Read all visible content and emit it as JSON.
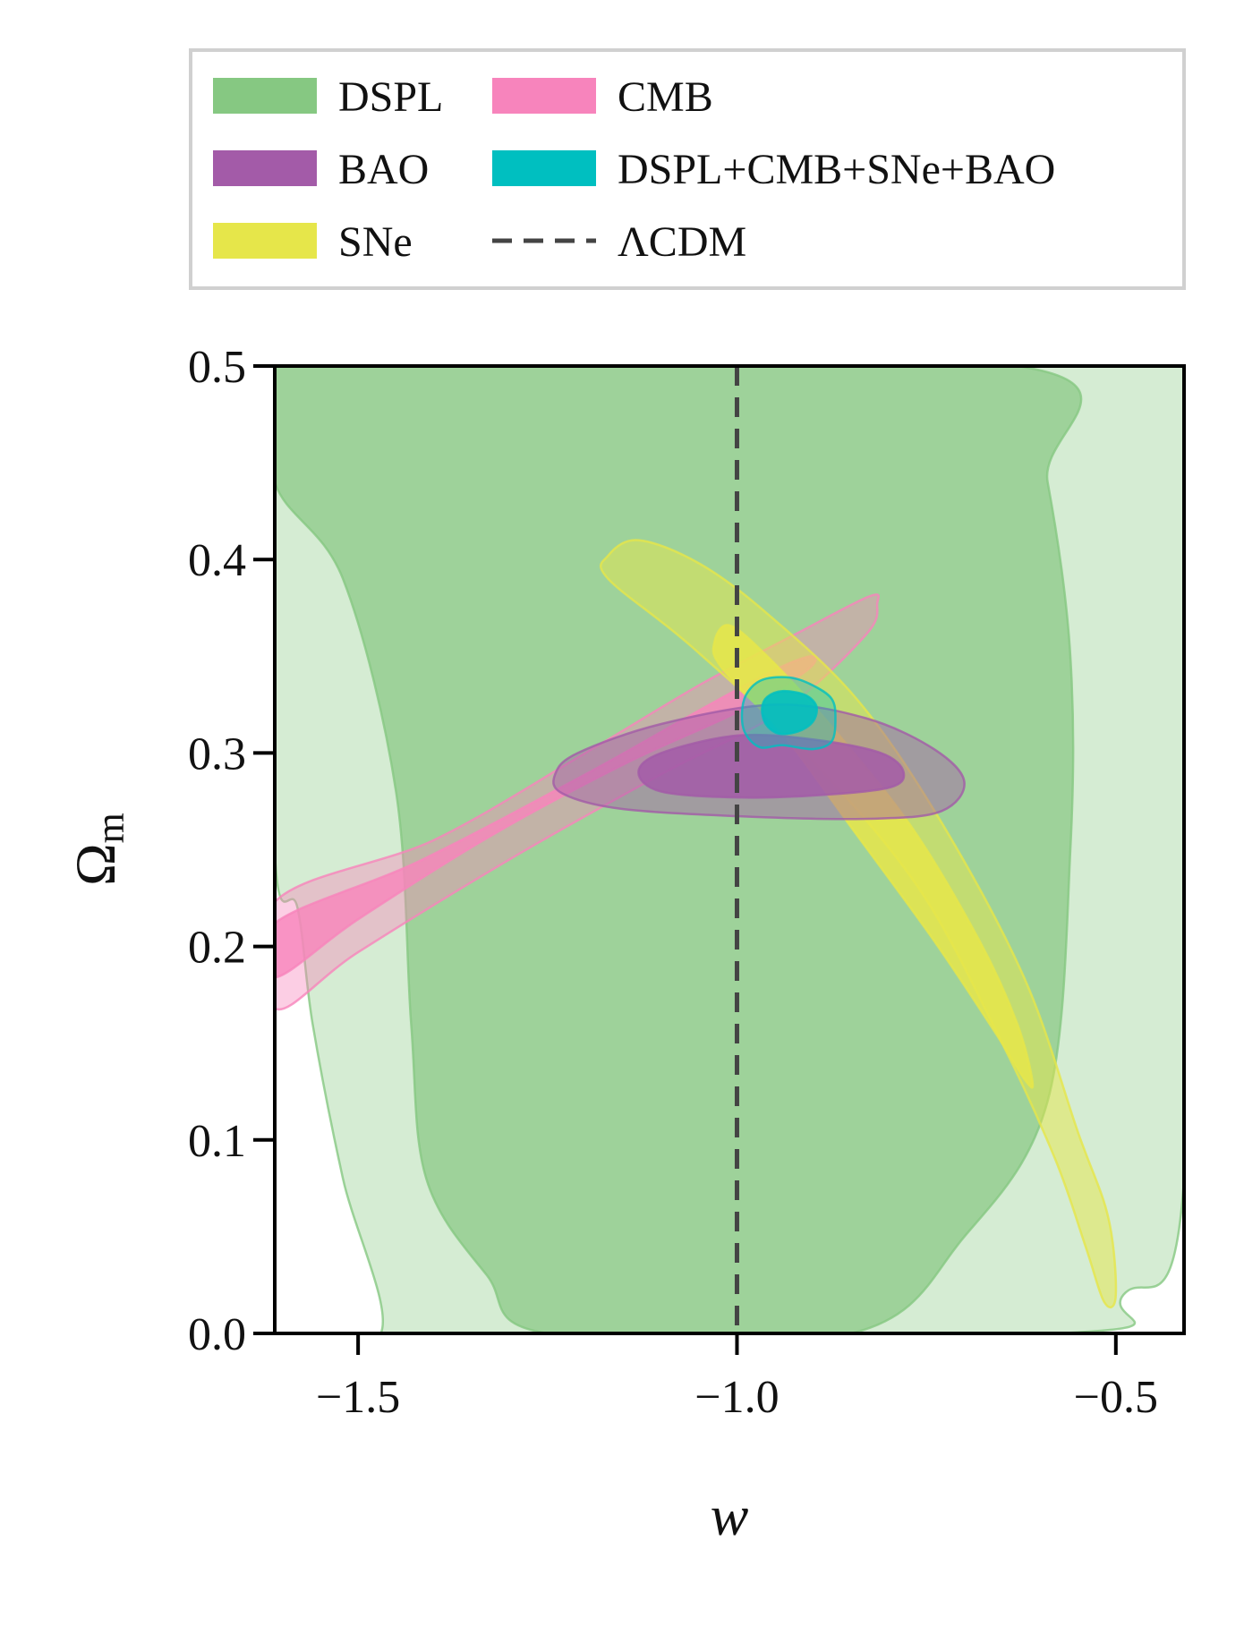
{
  "chart_data": {
    "type": "contour",
    "xlabel": "w",
    "ylabel_main": "Ω",
    "ylabel_sub": "m",
    "xlim": [
      -1.61,
      -0.41
    ],
    "ylim": [
      0.0,
      0.5
    ],
    "xticks": [
      {
        "value": -1.5,
        "label": "−1.5"
      },
      {
        "value": -1.0,
        "label": "−1.0"
      },
      {
        "value": -0.5,
        "label": "−0.5"
      }
    ],
    "yticks": [
      {
        "value": 0.0,
        "label": "0.0"
      },
      {
        "value": 0.1,
        "label": "0.1"
      },
      {
        "value": 0.2,
        "label": "0.2"
      },
      {
        "value": 0.3,
        "label": "0.3"
      },
      {
        "value": 0.4,
        "label": "0.4"
      },
      {
        "value": 0.5,
        "label": "0.5"
      }
    ],
    "reference_line": {
      "name": "ΛCDM",
      "x": -1.0,
      "style": "dashed",
      "color": "#444444"
    },
    "legend": {
      "placement": "top, above plot",
      "columns": 2,
      "entries": [
        {
          "label": "DSPL",
          "color": "#86c882",
          "kind": "patch"
        },
        {
          "label": "BAO",
          "color": "#a35ba8",
          "kind": "patch"
        },
        {
          "label": "SNe",
          "color": "#e6e64a",
          "kind": "patch"
        },
        {
          "label": "CMB",
          "color": "#f784bc",
          "kind": "patch"
        },
        {
          "label": "DSPL+CMB+SNe+BAO",
          "color": "#00bfc0",
          "kind": "patch"
        },
        {
          "label": "ΛCDM",
          "color": "#444444",
          "kind": "dashed-line"
        }
      ]
    },
    "series": [
      {
        "name": "DSPL",
        "color": "#86c882",
        "contours": [
          {
            "level": "2sigma",
            "opacity": 0.35,
            "points": [
              [
                -1.61,
                0.0
              ],
              [
                -1.47,
                0.0
              ],
              [
                -1.52,
                0.08
              ],
              [
                -1.56,
                0.16
              ],
              [
                -1.58,
                0.22
              ],
              [
                -1.61,
                0.25
              ],
              [
                -1.61,
                0.5
              ],
              [
                -0.41,
                0.5
              ],
              [
                -0.41,
                0.08
              ],
              [
                -0.49,
                0.02
              ],
              [
                -0.58,
                0.0
              ]
            ]
          },
          {
            "level": "1sigma",
            "opacity": 0.7,
            "points": [
              [
                -1.61,
                0.5
              ],
              [
                -1.61,
                0.44
              ],
              [
                -1.52,
                0.39
              ],
              [
                -1.45,
                0.28
              ],
              [
                -1.43,
                0.16
              ],
              [
                -1.41,
                0.08
              ],
              [
                -1.33,
                0.03
              ],
              [
                -1.25,
                0.0
              ],
              [
                -0.85,
                0.0
              ],
              [
                -0.7,
                0.05
              ],
              [
                -0.59,
                0.12
              ],
              [
                -0.56,
                0.25
              ],
              [
                -0.56,
                0.35
              ],
              [
                -0.59,
                0.44
              ],
              [
                -0.63,
                0.5
              ]
            ]
          }
        ]
      },
      {
        "name": "CMB",
        "color": "#f784bc",
        "contours": [
          {
            "level": "2sigma",
            "opacity": 0.4,
            "points": [
              [
                -1.61,
                0.223
              ],
              [
                -1.4,
                0.255
              ],
              [
                -1.2,
                0.3
              ],
              [
                -1.05,
                0.335
              ],
              [
                -0.92,
                0.362
              ],
              [
                -0.825,
                0.381
              ],
              [
                -0.815,
                0.377
              ],
              [
                -0.83,
                0.361
              ],
              [
                -0.94,
                0.322
              ],
              [
                -1.1,
                0.289
              ],
              [
                -1.3,
                0.245
              ],
              [
                -1.5,
                0.197
              ],
              [
                -1.61,
                0.168
              ]
            ]
          },
          {
            "level": "1sigma",
            "opacity": 0.8,
            "points": [
              [
                -1.61,
                0.212
              ],
              [
                -1.42,
                0.244
              ],
              [
                -1.2,
                0.289
              ],
              [
                -1.05,
                0.322
              ],
              [
                -0.95,
                0.343
              ],
              [
                -0.9,
                0.35
              ],
              [
                -0.91,
                0.342
              ],
              [
                -1.0,
                0.321
              ],
              [
                -1.15,
                0.294
              ],
              [
                -1.33,
                0.256
              ],
              [
                -1.5,
                0.214
              ],
              [
                -1.61,
                0.184
              ]
            ]
          }
        ]
      },
      {
        "name": "SNe",
        "color": "#e6e64a",
        "contours": [
          {
            "level": "2sigma",
            "opacity": 0.5,
            "points": [
              [
                -1.17,
                0.402
              ],
              [
                -1.13,
                0.41
              ],
              [
                -1.05,
                0.398
              ],
              [
                -0.96,
                0.372
              ],
              [
                -0.84,
                0.327
              ],
              [
                -0.73,
                0.264
              ],
              [
                -0.62,
                0.183
              ],
              [
                -0.55,
                0.104
              ],
              [
                -0.51,
                0.06
              ],
              [
                -0.5,
                0.02
              ],
              [
                -0.515,
                0.016
              ],
              [
                -0.54,
                0.045
              ],
              [
                -0.58,
                0.09
              ],
              [
                -0.65,
                0.15
              ],
              [
                -0.76,
                0.23
              ],
              [
                -0.91,
                0.3
              ],
              [
                -1.06,
                0.355
              ],
              [
                -1.17,
                0.39
              ]
            ]
          },
          {
            "level": "1sigma",
            "opacity": 0.85,
            "points": [
              [
                -1.03,
                0.357
              ],
              [
                -1.01,
                0.366
              ],
              [
                -0.96,
                0.35
              ],
              [
                -0.88,
                0.316
              ],
              [
                -0.77,
                0.262
              ],
              [
                -0.68,
                0.203
              ],
              [
                -0.63,
                0.16
              ],
              [
                -0.61,
                0.13
              ],
              [
                -0.62,
                0.131
              ],
              [
                -0.66,
                0.156
              ],
              [
                -0.74,
                0.203
              ],
              [
                -0.85,
                0.262
              ],
              [
                -0.94,
                0.31
              ],
              [
                -1.02,
                0.344
              ]
            ]
          }
        ]
      },
      {
        "name": "BAO",
        "color": "#a35ba8",
        "contours": [
          {
            "level": "2sigma",
            "opacity": 0.45,
            "points": [
              [
                -1.24,
                0.289
              ],
              [
                -1.21,
                0.3
              ],
              [
                -1.1,
                0.315
              ],
              [
                -0.95,
                0.325
              ],
              [
                -0.83,
                0.318
              ],
              [
                -0.74,
                0.302
              ],
              [
                -0.7,
                0.285
              ],
              [
                -0.73,
                0.27
              ],
              [
                -0.82,
                0.266
              ],
              [
                -0.98,
                0.267
              ],
              [
                -1.15,
                0.271
              ],
              [
                -1.23,
                0.279
              ]
            ]
          },
          {
            "level": "1sigma",
            "opacity": 0.85,
            "points": [
              [
                -1.13,
                0.29
              ],
              [
                -1.1,
                0.3
              ],
              [
                -1.0,
                0.309
              ],
              [
                -0.9,
                0.307
              ],
              [
                -0.81,
                0.3
              ],
              [
                -0.78,
                0.29
              ],
              [
                -0.8,
                0.282
              ],
              [
                -0.9,
                0.278
              ],
              [
                -1.0,
                0.277
              ],
              [
                -1.1,
                0.28
              ]
            ]
          }
        ]
      },
      {
        "name": "DSPL+CMB+SNe+BAO",
        "color": "#00bfc0",
        "contours": [
          {
            "level": "2sigma",
            "opacity": 0.35,
            "points": [
              [
                -0.993,
                0.323
              ],
              [
                -0.985,
                0.332
              ],
              [
                -0.965,
                0.338
              ],
              [
                -0.93,
                0.339
              ],
              [
                -0.9,
                0.335
              ],
              [
                -0.875,
                0.328
              ],
              [
                -0.87,
                0.318
              ],
              [
                -0.875,
                0.306
              ],
              [
                -0.9,
                0.302
              ],
              [
                -0.94,
                0.304
              ],
              [
                -0.97,
                0.303
              ],
              [
                -0.99,
                0.311
              ]
            ]
          },
          {
            "level": "1sigma",
            "opacity": 0.9,
            "points": [
              [
                -0.967,
                0.323
              ],
              [
                -0.96,
                0.329
              ],
              [
                -0.94,
                0.332
              ],
              [
                -0.91,
                0.33
              ],
              [
                -0.895,
                0.324
              ],
              [
                -0.9,
                0.316
              ],
              [
                -0.92,
                0.311
              ],
              [
                -0.945,
                0.31
              ],
              [
                -0.962,
                0.315
              ]
            ]
          }
        ]
      }
    ]
  }
}
